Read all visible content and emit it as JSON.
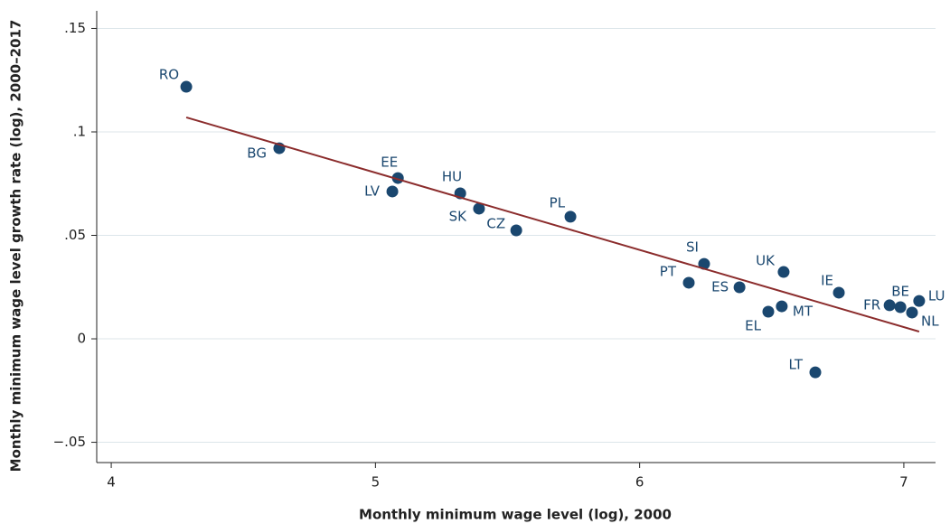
{
  "chart_data": {
    "type": "scatter",
    "x_label": "Monthly minimum wage level (log), 2000",
    "y_label": "Monthly minimum wage level growth rate (log), 2000–2017",
    "xlim": [
      3.945,
      7.12
    ],
    "ylim": [
      -0.0598,
      0.1585
    ],
    "xticks": [
      4,
      5,
      6,
      7
    ],
    "yticks": [
      {
        "value": 0.15,
        "label": ".15"
      },
      {
        "value": 0.1,
        "label": ".1"
      },
      {
        "value": 0.05,
        "label": ".05"
      },
      0,
      {
        "value": -0.05,
        "label": "−.05"
      }
    ],
    "grid": true,
    "series": [
      {
        "color": "#1a476f",
        "labels": [
          "RO",
          "BG",
          "EE",
          "LV",
          "HU",
          "SK",
          "CZ",
          "PL",
          "SI",
          "PT",
          "UK",
          "ES",
          "IE",
          "MT",
          "EL",
          "LT",
          "FR",
          "BE",
          "LU",
          "NL"
        ],
        "x": [
          4.284,
          4.636,
          5.085,
          5.064,
          5.321,
          5.392,
          5.533,
          5.738,
          6.244,
          6.186,
          6.545,
          6.378,
          6.754,
          6.538,
          6.487,
          6.665,
          6.946,
          6.987,
          7.058,
          7.031
        ],
        "values": [
          0.1218,
          0.0921,
          0.0777,
          0.0712,
          0.0703,
          0.0629,
          0.0524,
          0.059,
          0.0362,
          0.0271,
          0.0323,
          0.0249,
          0.0223,
          0.0157,
          0.0131,
          -0.0162,
          0.0162,
          0.0153,
          0.0183,
          0.0127
        ]
      },
      {
        "type": "line",
        "color": "#8b2c2c",
        "x": [
          4.284,
          7.058
        ],
        "values": [
          0.107,
          0.0035
        ]
      }
    ]
  }
}
